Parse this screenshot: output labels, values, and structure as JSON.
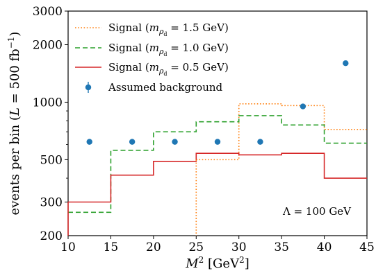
{
  "chart_data": {
    "type": "step",
    "xlim": [
      10,
      45
    ],
    "ylim": [
      200,
      3000
    ],
    "yscale": "log",
    "xlabel": "M² [GeV²]",
    "ylabel": "events per bin (L = 500 fb⁻¹)",
    "xticks": [
      10,
      15,
      20,
      25,
      30,
      35,
      40,
      45
    ],
    "yticks_major": [
      {
        "value": 300,
        "label": "300"
      },
      {
        "value": 500,
        "label": "500"
      },
      {
        "value": 1000,
        "label": "1000"
      },
      {
        "value": 2000,
        "label": "2000"
      },
      {
        "value": 3000,
        "label": "3000"
      }
    ],
    "ytick_extra_label": {
      "value": 200,
      "label": "200"
    },
    "bin_edges": [
      10,
      15,
      20,
      25,
      30,
      35,
      40,
      45
    ],
    "series": [
      {
        "name": "Signal (m_ρd = 1.5 GeV)",
        "style": "dotted",
        "color": "#ff7f0e",
        "values": [
          null,
          null,
          null,
          500,
          980,
          960,
          720
        ]
      },
      {
        "name": "Signal (m_ρd = 1.0 GeV)",
        "style": "dashed",
        "color": "#2ca02c",
        "values": [
          265,
          560,
          700,
          790,
          850,
          760,
          610
        ]
      },
      {
        "name": "Signal (m_ρd = 0.5 GeV)",
        "style": "solid",
        "color": "#d62728",
        "values": [
          300,
          415,
          490,
          540,
          530,
          540,
          400
        ]
      },
      {
        "name": "Assumed background",
        "style": "points",
        "color": "#1f77b4",
        "x": [
          12.5,
          17.5,
          22.5,
          27.5,
          32.5,
          37.5,
          42.5
        ],
        "values": [
          620,
          620,
          620,
          620,
          620,
          950,
          1600
        ]
      }
    ],
    "legend": {
      "position": "upper-left",
      "entries": [
        {
          "prefix": "Signal (",
          "m": "m",
          "sub1": "ρ",
          "sub2": "d",
          "suffix": " = 1.5 GeV)"
        },
        {
          "prefix": "Signal (",
          "m": "m",
          "sub1": "ρ",
          "sub2": "d",
          "suffix": " = 1.0 GeV)"
        },
        {
          "prefix": "Signal (",
          "m": "m",
          "sub1": "ρ",
          "sub2": "d",
          "suffix": " = 0.5 GeV)"
        },
        {
          "prefix": "Assumed background",
          "m": "",
          "sub1": "",
          "sub2": "",
          "suffix": ""
        }
      ]
    },
    "annotation": "Λ = 100 GeV"
  }
}
